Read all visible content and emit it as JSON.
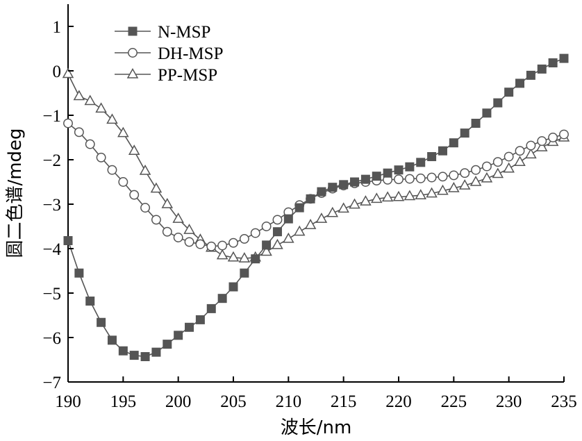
{
  "chart_data": {
    "type": "line",
    "title": "",
    "xlabel": "波长/nm",
    "ylabel": "圆二色谱/mdeg",
    "xlim": [
      190,
      235
    ],
    "ylim": [
      -7,
      1.5
    ],
    "xticks": [
      190,
      195,
      200,
      205,
      210,
      215,
      220,
      225,
      230,
      235
    ],
    "yticks": [
      -7,
      -6,
      -5,
      -4,
      -3,
      -2,
      -1,
      0,
      1
    ],
    "xtick_labels": [
      "190",
      "195",
      "200",
      "205",
      "210",
      "215",
      "220",
      "225",
      "230",
      "235"
    ],
    "ytick_labels": [
      "−7",
      "−6",
      "−5",
      "−4",
      "−3",
      "−2",
      "−1",
      "0",
      "1"
    ],
    "grid": false,
    "legend_position": "top-left",
    "x": [
      190,
      191,
      192,
      193,
      194,
      195,
      196,
      197,
      198,
      199,
      200,
      201,
      202,
      203,
      204,
      205,
      206,
      207,
      208,
      209,
      210,
      211,
      212,
      213,
      214,
      215,
      216,
      217,
      218,
      219,
      220,
      221,
      222,
      223,
      224,
      225,
      226,
      227,
      228,
      229,
      230,
      231,
      232,
      233,
      234,
      235
    ],
    "series": [
      {
        "name": "N-MSP",
        "marker": "filled-square",
        "color": "#555555",
        "values": [
          -3.82,
          -4.55,
          -5.18,
          -5.66,
          -6.06,
          -6.3,
          -6.4,
          -6.43,
          -6.33,
          -6.15,
          -5.95,
          -5.77,
          -5.6,
          -5.35,
          -5.12,
          -4.86,
          -4.55,
          -4.23,
          -3.92,
          -3.62,
          -3.33,
          -3.08,
          -2.88,
          -2.72,
          -2.62,
          -2.56,
          -2.5,
          -2.44,
          -2.37,
          -2.3,
          -2.23,
          -2.16,
          -2.06,
          -1.93,
          -1.8,
          -1.62,
          -1.4,
          -1.18,
          -0.95,
          -0.72,
          -0.48,
          -0.28,
          -0.1,
          0.04,
          0.18,
          0.28
        ]
      },
      {
        "name": "DH-MSP",
        "marker": "open-circle",
        "color": "#555555",
        "values": [
          -1.18,
          -1.38,
          -1.65,
          -1.95,
          -2.23,
          -2.5,
          -2.79,
          -3.08,
          -3.35,
          -3.62,
          -3.75,
          -3.85,
          -3.9,
          -3.95,
          -3.93,
          -3.87,
          -3.78,
          -3.65,
          -3.5,
          -3.35,
          -3.18,
          -3.02,
          -2.88,
          -2.75,
          -2.65,
          -2.58,
          -2.53,
          -2.5,
          -2.47,
          -2.45,
          -2.44,
          -2.43,
          -2.42,
          -2.4,
          -2.38,
          -2.35,
          -2.3,
          -2.23,
          -2.15,
          -2.05,
          -1.93,
          -1.8,
          -1.68,
          -1.58,
          -1.5,
          -1.43
        ]
      },
      {
        "name": "PP-MSP",
        "marker": "open-triangle",
        "color": "#555555",
        "values": [
          -0.07,
          -0.57,
          -0.68,
          -0.85,
          -1.1,
          -1.4,
          -1.8,
          -2.25,
          -2.65,
          -3.0,
          -3.33,
          -3.58,
          -3.8,
          -3.98,
          -4.15,
          -4.2,
          -4.22,
          -4.2,
          -4.07,
          -3.92,
          -3.78,
          -3.62,
          -3.47,
          -3.33,
          -3.2,
          -3.1,
          -3.01,
          -2.94,
          -2.88,
          -2.85,
          -2.84,
          -2.82,
          -2.8,
          -2.76,
          -2.7,
          -2.64,
          -2.58,
          -2.5,
          -2.42,
          -2.32,
          -2.2,
          -2.05,
          -1.88,
          -1.72,
          -1.6,
          -1.5
        ]
      }
    ]
  }
}
